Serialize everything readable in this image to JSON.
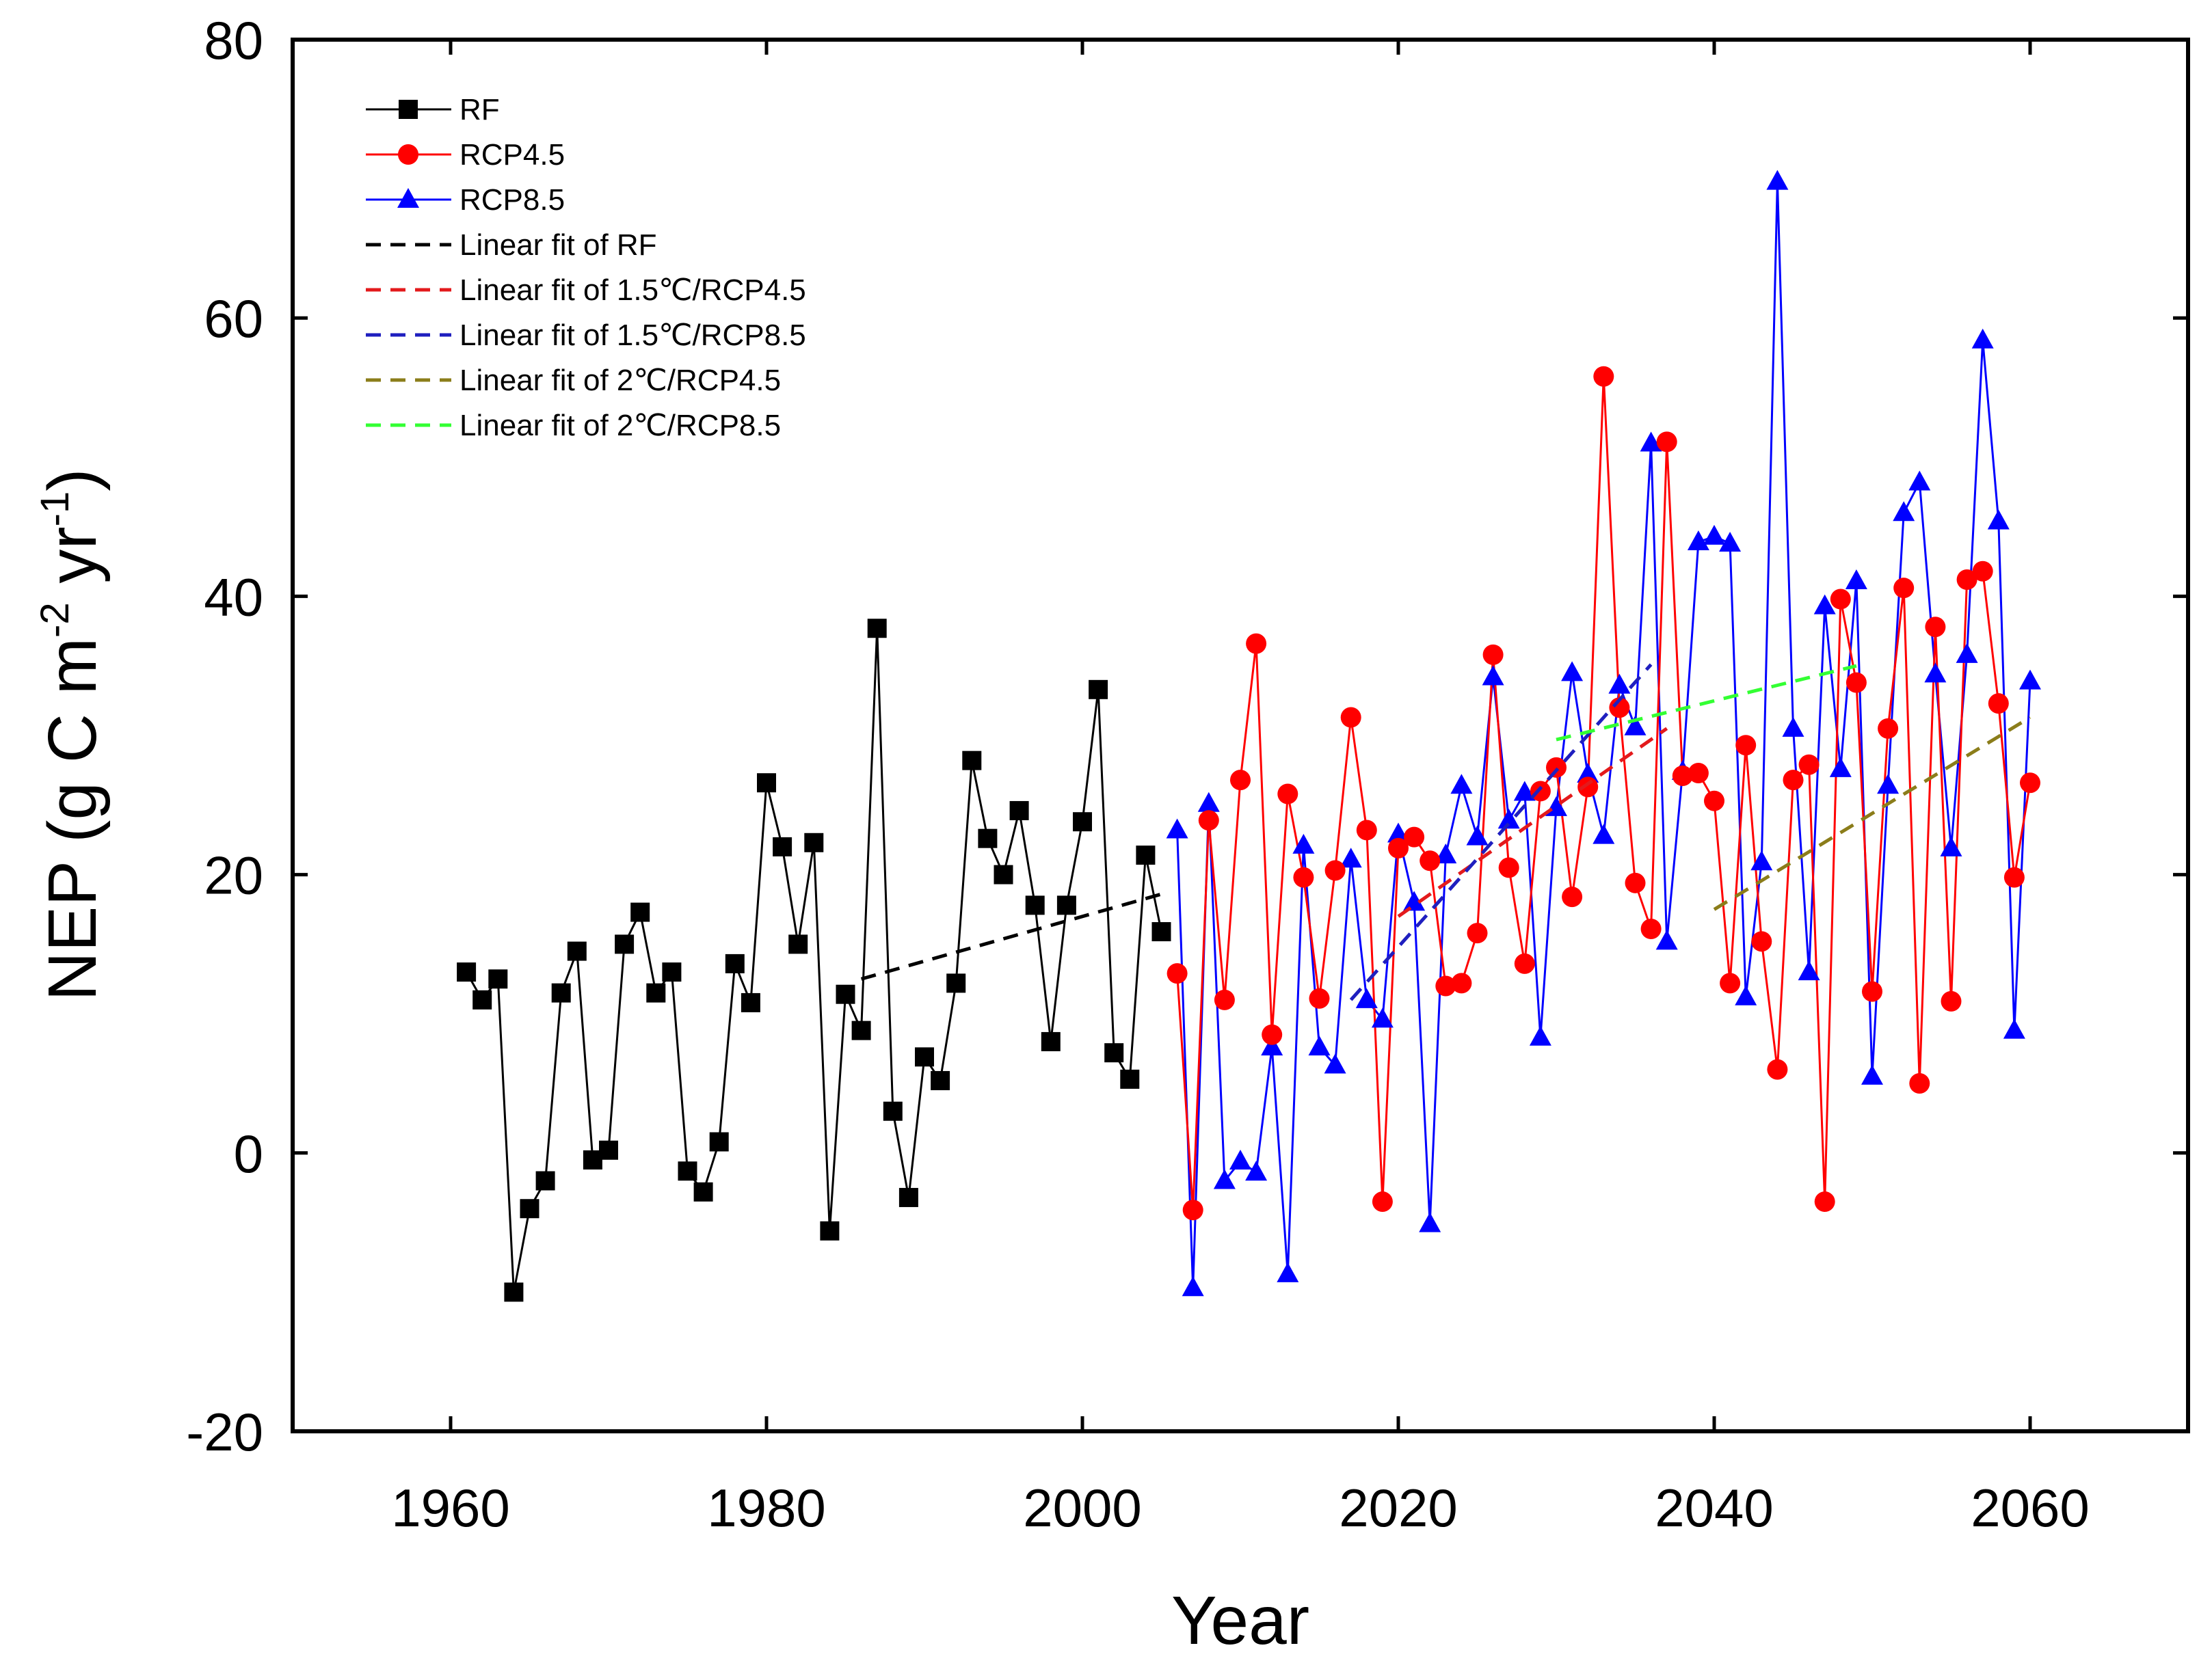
{
  "chart_data": {
    "type": "line",
    "title": "",
    "xlabel": "Year",
    "ylabel_main": "NEP (g C m",
    "ylabel_sup1": "-2",
    "ylabel_mid": " yr",
    "ylabel_sup2": "-1",
    "ylabel_end": ")",
    "xlim": [
      1950,
      2070
    ],
    "ylim": [
      -20,
      80
    ],
    "xticks": [
      1960,
      1980,
      2000,
      2020,
      2040,
      2060
    ],
    "yticks": [
      -20,
      0,
      20,
      40,
      60,
      80
    ],
    "xtick_labels": [
      "1960",
      "1980",
      "2000",
      "2020",
      "2040",
      "2060"
    ],
    "ytick_labels": [
      "-20",
      "0",
      "20",
      "40",
      "60",
      "80"
    ],
    "legend_position": "top-left",
    "series": [
      {
        "name": "RF",
        "color": "#000000",
        "marker": "square",
        "x": [
          1961,
          1962,
          1963,
          1964,
          1965,
          1966,
          1967,
          1968,
          1969,
          1970,
          1971,
          1972,
          1973,
          1974,
          1975,
          1976,
          1977,
          1978,
          1979,
          1980,
          1981,
          1982,
          1983,
          1984,
          1985,
          1986,
          1987,
          1988,
          1989,
          1990,
          1991,
          1992,
          1993,
          1994,
          1995,
          1996,
          1997,
          1998,
          1999,
          2000,
          2001,
          2002,
          2003,
          2004,
          2005
        ],
        "y": [
          13,
          11,
          12.5,
          -10,
          -4,
          -2,
          11.5,
          14.5,
          -0.5,
          0.2,
          15,
          17.3,
          11.5,
          13,
          -1.3,
          -2.8,
          0.8,
          13.6,
          10.8,
          26.6,
          22,
          15,
          22.3,
          -5.6,
          11.4,
          8.8,
          37.7,
          3,
          -3.2,
          6.9,
          5.2,
          12.2,
          28.2,
          22.6,
          20,
          24.6,
          17.8,
          8,
          17.8,
          23.8,
          33.3,
          7.2,
          5.3,
          21.4,
          15.9
        ]
      },
      {
        "name": "RCP4.5",
        "color": "#ff0000",
        "marker": "circle",
        "x": [
          2006,
          2007,
          2008,
          2009,
          2010,
          2011,
          2012,
          2013,
          2014,
          2015,
          2016,
          2017,
          2018,
          2019,
          2020,
          2021,
          2022,
          2023,
          2024,
          2025,
          2026,
          2027,
          2028,
          2029,
          2030,
          2031,
          2032,
          2033,
          2034,
          2035,
          2036,
          2037,
          2038,
          2039,
          2040,
          2041,
          2042,
          2043,
          2044,
          2045,
          2046,
          2047,
          2048,
          2049,
          2050,
          2051,
          2052,
          2053,
          2054,
          2055,
          2056,
          2057,
          2058,
          2059,
          2060
        ],
        "y": [
          12.9,
          -4.1,
          23.9,
          11,
          26.8,
          36.6,
          8.5,
          25.8,
          19.8,
          11.1,
          20.3,
          31.3,
          23.2,
          -3.5,
          21.9,
          22.7,
          21,
          12,
          12.2,
          15.8,
          35.8,
          20.5,
          13.6,
          26,
          27.7,
          18.4,
          26.3,
          55.8,
          32,
          19.4,
          16.1,
          51.1,
          27.1,
          27.3,
          25.3,
          12.2,
          29.3,
          15.2,
          6,
          26.8,
          27.9,
          -3.5,
          39.8,
          33.8,
          11.6,
          30.5,
          40.6,
          5,
          37.8,
          10.9,
          41.2,
          41.8,
          32.3,
          19.8,
          26.6
        ]
      },
      {
        "name": "RCP8.5",
        "color": "#0000ff",
        "marker": "triangle",
        "x": [
          2006,
          2007,
          2008,
          2009,
          2010,
          2011,
          2012,
          2013,
          2014,
          2015,
          2016,
          2017,
          2018,
          2019,
          2020,
          2021,
          2022,
          2023,
          2024,
          2025,
          2026,
          2027,
          2028,
          2029,
          2030,
          2031,
          2032,
          2033,
          2034,
          2035,
          2036,
          2037,
          2038,
          2039,
          2040,
          2041,
          2042,
          2043,
          2044,
          2045,
          2046,
          2047,
          2048,
          2049,
          2050,
          2051,
          2052,
          2053,
          2054,
          2055,
          2056,
          2057,
          2058,
          2059,
          2060
        ],
        "y": [
          23.2,
          -9.7,
          25.1,
          -2,
          -0.6,
          -1.4,
          7.6,
          -8.7,
          22.1,
          7.6,
          6.3,
          21.1,
          11,
          9.6,
          22.9,
          18,
          -5.1,
          21.4,
          26.4,
          22.7,
          34.2,
          23.9,
          25.9,
          8.3,
          24.8,
          34.5,
          27.2,
          22.8,
          33.6,
          30.6,
          51,
          15.2,
          27.4,
          43.9,
          44.3,
          43.8,
          11.2,
          20.9,
          69.8,
          30.5,
          13,
          39.3,
          27.6,
          41.1,
          5.5,
          26.4,
          46,
          48.2,
          34.4,
          21.9,
          35.8,
          58.4,
          45.4,
          8.8,
          33.9
        ]
      }
    ],
    "fits": [
      {
        "name": "Linear fit of RF",
        "color": "#000000",
        "x": [
          1986,
          2005
        ],
        "y": [
          12.5,
          18.6
        ]
      },
      {
        "name": "Linear fit of 1.5℃/RCP4.5",
        "color": "#e31a1c",
        "x": [
          2020,
          2037
        ],
        "y": [
          17,
          30.5
        ]
      },
      {
        "name": "Linear fit of 1.5℃/RCP8.5",
        "color": "#1f1fbf",
        "x": [
          2017,
          2036
        ],
        "y": [
          11,
          35.1
        ]
      },
      {
        "name": "Linear fit of 2℃/RCP4.5",
        "color": "#8b7d1a",
        "x": [
          2040,
          2060
        ],
        "y": [
          17.5,
          31.3
        ]
      },
      {
        "name": "Linear fit of 2℃/RCP8.5",
        "color": "#33ff33",
        "x": [
          2030,
          2049
        ],
        "y": [
          29.7,
          35
        ]
      }
    ],
    "legend": [
      {
        "label": "RF",
        "kind": "series",
        "color": "#000000",
        "marker": "square"
      },
      {
        "label": "RCP4.5",
        "kind": "series",
        "color": "#ff0000",
        "marker": "circle"
      },
      {
        "label": "RCP8.5",
        "kind": "series",
        "color": "#0000ff",
        "marker": "triangle"
      },
      {
        "label": "Linear fit of RF",
        "kind": "fit",
        "color": "#000000"
      },
      {
        "label": "Linear fit of 1.5℃/RCP4.5",
        "kind": "fit",
        "color": "#e31a1c"
      },
      {
        "label": "Linear fit of 1.5℃/RCP8.5",
        "kind": "fit",
        "color": "#1f1fbf"
      },
      {
        "label": "Linear fit of 2℃/RCP4.5",
        "kind": "fit",
        "color": "#8b7d1a"
      },
      {
        "label": "Linear fit of 2℃/RCP8.5",
        "kind": "fit",
        "color": "#33ff33"
      }
    ]
  }
}
